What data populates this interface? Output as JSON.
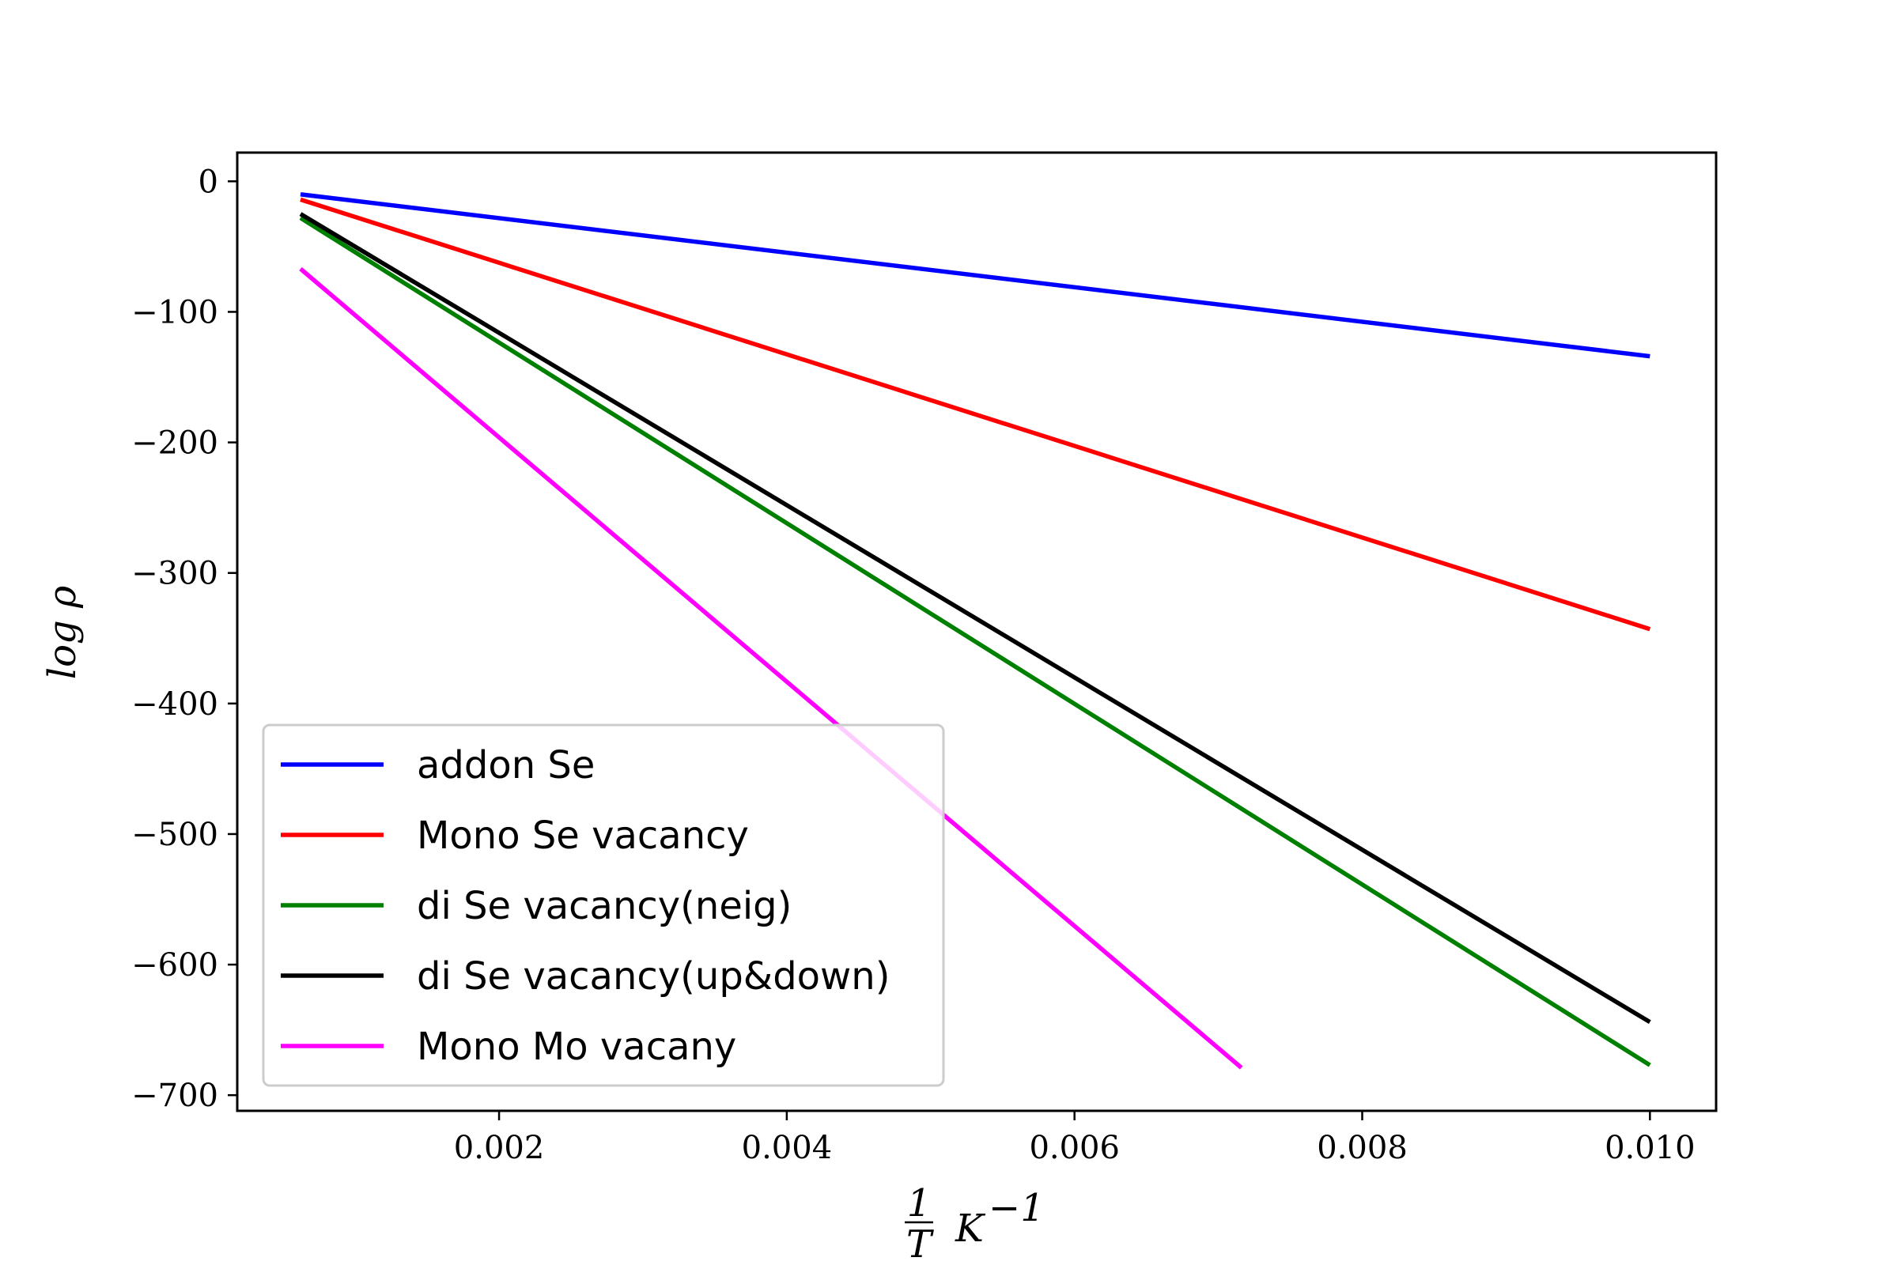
{
  "chart_data": {
    "type": "line",
    "title": "",
    "xlabel": {
      "frac_num": "1",
      "frac_den": "T",
      "unit": "K",
      "unit_exp": "−1"
    },
    "ylabel": "log ρ",
    "xlim": [
      0.00018,
      0.01046
    ],
    "ylim": [
      -712,
      22
    ],
    "xticks": [
      0.002,
      0.004,
      0.006,
      0.008,
      0.01
    ],
    "xtick_labels": [
      "0.002",
      "0.004",
      "0.006",
      "0.008",
      "0.010"
    ],
    "yticks": [
      0,
      -100,
      -200,
      -300,
      -400,
      -500,
      -600,
      -700
    ],
    "ytick_labels": [
      "0",
      "−100",
      "−200",
      "−300",
      "−400",
      "−500",
      "−600",
      "−700"
    ],
    "grid": false,
    "legend_position": "lower-left",
    "series": [
      {
        "name": "addon Se",
        "color": "#0000ff",
        "x": [
          0.00062,
          0.01
        ],
        "y": [
          -10,
          -134
        ]
      },
      {
        "name": "Mono Se vacancy",
        "color": "#ff0000",
        "x": [
          0.00062,
          0.01
        ],
        "y": [
          -14,
          -343
        ]
      },
      {
        "name": "di Se vacancy(neig)",
        "color": "#008000",
        "x": [
          0.00062,
          0.01
        ],
        "y": [
          -28,
          -677
        ]
      },
      {
        "name": "di Se vacancy(up&down)",
        "color": "#000000",
        "x": [
          0.00062,
          0.01
        ],
        "y": [
          -25,
          -644
        ]
      },
      {
        "name": "Mono Mo vacany",
        "color": "#ff00ff",
        "x": [
          0.00062,
          0.00716
        ],
        "y": [
          -67,
          -679
        ]
      }
    ]
  }
}
